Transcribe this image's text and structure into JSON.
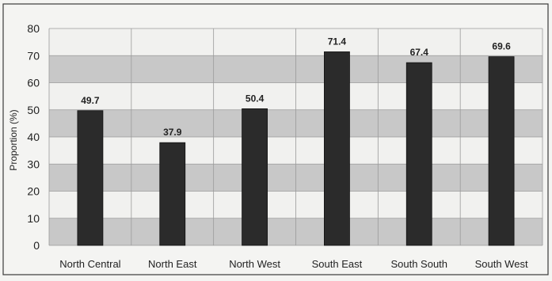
{
  "chart_data": {
    "type": "bar",
    "categories": [
      "North Central",
      "North East",
      "North West",
      "South East",
      "South South",
      "South West"
    ],
    "values": [
      49.7,
      37.9,
      50.4,
      71.4,
      67.4,
      69.6
    ],
    "data_labels": [
      "49.7",
      "37.9",
      "50.4",
      "71.4",
      "67.4",
      "69.6"
    ],
    "title": "",
    "xlabel": "",
    "ylabel": "Proportion (%)",
    "ylim": [
      0,
      80
    ],
    "yticks": [
      0,
      10,
      20,
      30,
      40,
      50,
      60,
      70,
      80
    ],
    "grid": true,
    "legend": "none",
    "colors": {
      "bar": "#2b2b2b",
      "band_dark": "#c8c8c8",
      "band_light": "#f1f1ef",
      "grid": "#9a9a9a",
      "text": "#222222"
    }
  }
}
